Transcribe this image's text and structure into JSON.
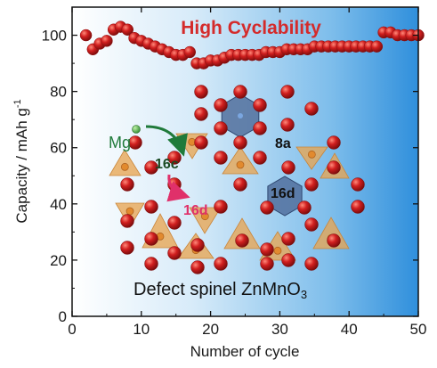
{
  "chart_data": {
    "type": "scatter",
    "title": "",
    "xlabel": "Number of cycle",
    "ylabel": "Capacity / mAh g",
    "ylabel_superscript": "-1",
    "xlim": [
      0,
      50
    ],
    "ylim": [
      0,
      110
    ],
    "x_ticks": [
      "0",
      "10",
      "20",
      "30",
      "40",
      "50"
    ],
    "y_ticks": [
      "0",
      "20",
      "40",
      "60",
      "80",
      "100"
    ],
    "grid": false,
    "legend": "none",
    "series": [
      {
        "color": "#d81e1e",
        "x": [
          2,
          3,
          4,
          5,
          6,
          7,
          8,
          9,
          10,
          11,
          12,
          13,
          14,
          15,
          16,
          17,
          18,
          19,
          20,
          21,
          22,
          23,
          24,
          25,
          26,
          27,
          28,
          29,
          30,
          31,
          32,
          33,
          34,
          35,
          36,
          37,
          38,
          39,
          40,
          41,
          42,
          43,
          44,
          45,
          46,
          47,
          48,
          49,
          50
        ],
        "y": [
          100,
          95,
          97,
          98,
          102,
          103,
          102,
          99,
          98,
          97,
          96,
          95,
          94,
          93,
          93,
          94,
          90,
          90,
          91,
          91,
          92,
          93,
          93,
          93,
          93,
          93,
          94,
          94,
          94,
          95,
          95,
          95,
          95,
          96,
          96,
          96,
          96,
          96,
          96,
          96,
          96,
          96,
          96,
          101,
          101,
          100,
          100,
          100,
          100
        ]
      }
    ],
    "annotations": {
      "headline": "High Cyclability",
      "mg": "Mg",
      "site_16c": "16c",
      "site_16d_arrow": "16d",
      "site_8a": "8a",
      "site_16d": "16d",
      "caption_prefix": "Defect spinel ZnMnO",
      "caption_subscript": "3"
    }
  },
  "colors": {
    "marker": "#d81e1e",
    "headline": "#d42b2b",
    "mg_label": "#1f7a3a",
    "arrow_16d": "#e0306a",
    "tetrahedron": "#e8a552",
    "octahedron": "#4e6b9a",
    "oxygen": "#c41a1a",
    "background_blue": "#3b98e0"
  }
}
